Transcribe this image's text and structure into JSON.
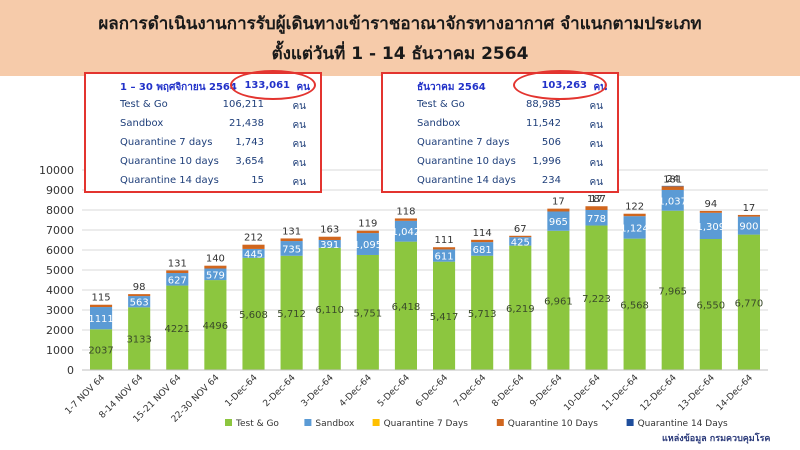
{
  "header": {
    "title_line1": "ผลการดำเนินงานการรับผู้เดินทางเข้าราชอาณาจักรทางอากาศ จำแนกตามประเภท",
    "title_line2": "ตั้งแต่วันที่   1 - 14   ธันวาคม   2564"
  },
  "summary_nov": {
    "heading": "1 – 30  พฤศจิกายน 2564",
    "total": "133,061",
    "unit": "คน",
    "rows": [
      {
        "label": "Test & Go",
        "value": "106,211",
        "unit": "คน"
      },
      {
        "label": "Sandbox",
        "value": "21,438",
        "unit": "คน"
      },
      {
        "label": "Quarantine 7 days",
        "value": "1,743",
        "unit": "คน"
      },
      {
        "label": "Quarantine 10 days",
        "value": "3,654",
        "unit": "คน"
      },
      {
        "label": "Quarantine 14 days",
        "value": "15",
        "unit": "คน"
      }
    ]
  },
  "summary_dec": {
    "heading": "ธันวาคม  2564",
    "total": "103,263",
    "unit": "คน",
    "rows": [
      {
        "label": "Test & Go",
        "value": "88,985",
        "unit": "คน"
      },
      {
        "label": "Sandbox",
        "value": "11,542",
        "unit": "คน"
      },
      {
        "label": "Quarantine 7 days",
        "value": "506",
        "unit": "คน"
      },
      {
        "label": "Quarantine 10 days",
        "value": "1,996",
        "unit": "คน"
      },
      {
        "label": "Quarantine 14 days",
        "value": "234",
        "unit": "คน"
      }
    ]
  },
  "source": "แหล่งข้อมูล กรมควบคุมโรค",
  "chart_data": {
    "type": "bar",
    "stacked": true,
    "categories": [
      "1-7 NOV 64",
      "8-14 NOV 64",
      "15-21 NOV 64",
      "22-30 NOV 64",
      "1-Dec-64",
      "2-Dec-64",
      "3-Dec-64",
      "4-Dec-64",
      "5-Dec-64",
      "6-Dec-64",
      "7-Dec-64",
      "8-Dec-64",
      "9-Dec-64",
      "10-Dec-64",
      "11-Dec-64",
      "12-Dec-64",
      "13-Dec-64",
      "14-Dec-64"
    ],
    "series": [
      {
        "name": "Test & Go",
        "color": "#8cc63f",
        "values": [
          2037,
          3133,
          4221,
          4496,
          5608,
          5712,
          6110,
          5751,
          6418,
          5417,
          5713,
          6219,
          6961,
          7223,
          6568,
          7965,
          6550,
          6770
        ],
        "labels": [
          "2037",
          "3133",
          "4221",
          "4496",
          "5,608",
          "5,712",
          "6,110",
          "5,751",
          "6,418",
          "5,417",
          "5,713",
          "6,219",
          "6,961",
          "7,223",
          "6,568",
          "7,965",
          "6,550",
          "6,770"
        ]
      },
      {
        "name": "Sandbox",
        "color": "#5b9bd5",
        "values": [
          1111,
          563,
          627,
          579,
          445,
          735,
          391,
          1095,
          1042,
          611,
          681,
          425,
          965,
          778,
          1124,
          1037,
          1309,
          900
        ],
        "labels": [
          "1111",
          "563",
          "627",
          "579",
          "445",
          "735",
          "391",
          "1,095",
          "1,042",
          "611",
          "681",
          "425",
          "965",
          "778",
          "1,124",
          "1,037",
          "1,309",
          "900"
        ]
      },
      {
        "name": "Quarantine 7 Days",
        "color": "#ffc000",
        "values": [
          0,
          0,
          0,
          0,
          0,
          0,
          0,
          0,
          0,
          0,
          0,
          0,
          0,
          0,
          0,
          0,
          0,
          0
        ]
      },
      {
        "name": "Quarantine 10 Days",
        "color": "#d0661e",
        "values": [
          115,
          98,
          131,
          140,
          212,
          131,
          163,
          119,
          118,
          111,
          114,
          67,
          142,
          187,
          122,
          181,
          94,
          83
        ],
        "labels": [
          "115",
          "98",
          "131",
          "140",
          "212",
          "131",
          "163",
          "119",
          "118",
          "111",
          "114",
          "67",
          "",
          "187",
          "122",
          "181",
          "94",
          ""
        ]
      },
      {
        "name": "Quarantine 14 Days",
        "color": "#1f4e9c",
        "values": [
          0,
          0,
          0,
          0,
          0,
          0,
          0,
          0,
          0,
          0,
          0,
          0,
          0,
          0,
          0,
          24,
          0,
          0
        ]
      }
    ],
    "extra_labels": [
      {
        "category": "9-Dec-64",
        "text": "17"
      },
      {
        "category": "10-Dec-64",
        "text": "17"
      },
      {
        "category": "12-Dec-64",
        "text": "24"
      },
      {
        "category": "14-Dec-64",
        "text": "17"
      }
    ],
    "ylim": [
      0,
      10000
    ],
    "yticks": [
      0,
      1000,
      2000,
      3000,
      4000,
      5000,
      6000,
      7000,
      8000,
      9000,
      10000
    ],
    "grid": true,
    "legend": "bottom",
    "title": "",
    "xlabel": "",
    "ylabel": ""
  }
}
